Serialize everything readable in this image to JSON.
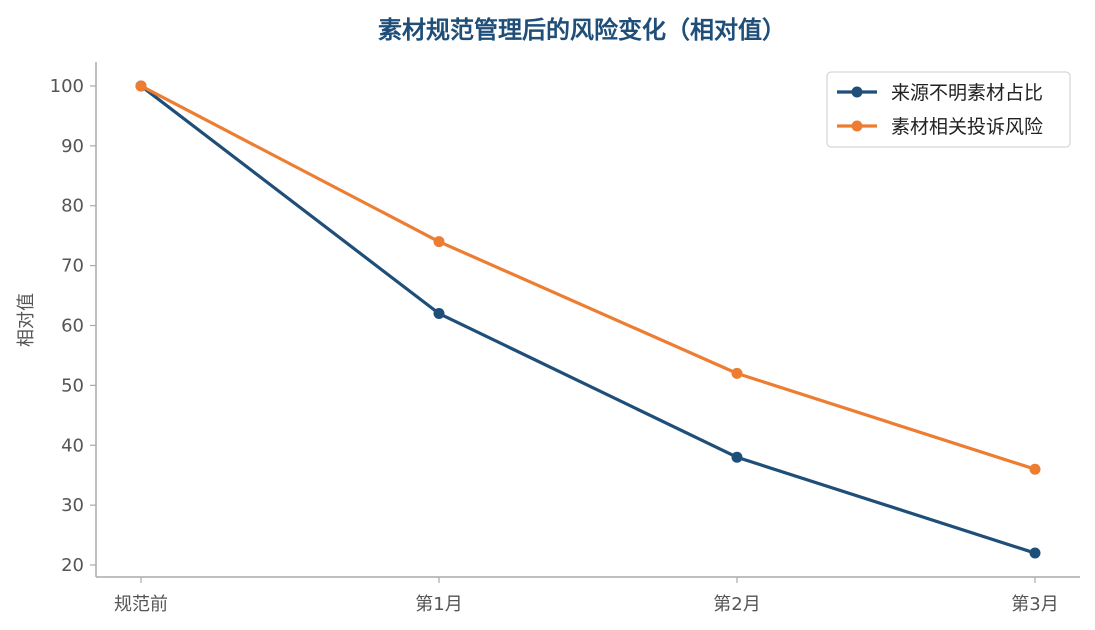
{
  "chart_data": {
    "type": "line",
    "title": "素材规范管理后的风险变化（相对值）",
    "ylabel": "相对值",
    "xlabel": "",
    "categories": [
      "规范前",
      "第1月",
      "第2月",
      "第3月"
    ],
    "ylim": [
      18,
      104
    ],
    "yticks": [
      20,
      30,
      40,
      50,
      60,
      70,
      80,
      90,
      100
    ],
    "grid": false,
    "legend_position": "top-right",
    "series": [
      {
        "name": "来源不明素材占比",
        "values": [
          100,
          62,
          38,
          22
        ],
        "color": "#1f4e79"
      },
      {
        "name": "素材相关投诉风险",
        "values": [
          100,
          74,
          52,
          36
        ],
        "color": "#ed7d31"
      }
    ],
    "title_color": "#1f4e79",
    "axis_color": "#aaaaaa"
  }
}
